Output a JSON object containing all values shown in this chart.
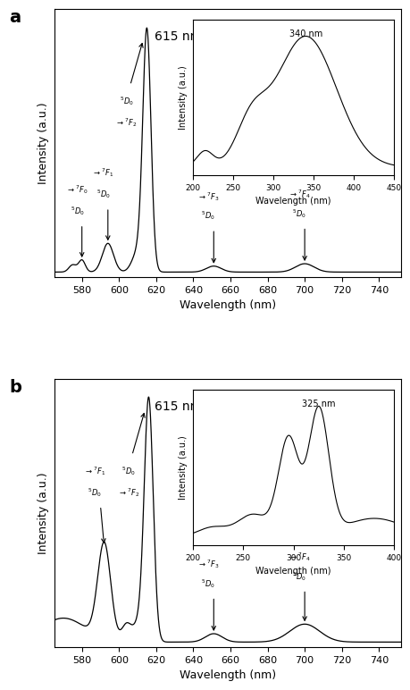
{
  "fig_width": 4.74,
  "fig_height": 7.76,
  "panel_a": {
    "xlim": [
      565,
      752
    ],
    "xticks": [
      580,
      600,
      620,
      640,
      660,
      680,
      700,
      720,
      740
    ],
    "xlabel": "Wavelength (nm)",
    "ylabel": "Intensity (a.u.)",
    "label": "a",
    "peak615_label": "615 nm",
    "inset": {
      "xlim": [
        200,
        450
      ],
      "xticks": [
        200,
        250,
        300,
        350,
        400,
        450
      ],
      "xlabel": "Wavelength (nm)",
      "ylabel": "Intensity (a.u.)",
      "peak_label": "340 nm"
    }
  },
  "panel_b": {
    "xlim": [
      565,
      752
    ],
    "xticks": [
      580,
      600,
      620,
      640,
      660,
      680,
      700,
      720,
      740
    ],
    "xlabel": "Wavelength (nm)",
    "ylabel": "Intensity (a.u.)",
    "label": "b",
    "peak615_label": "615 nm",
    "inset": {
      "xlim": [
        200,
        400
      ],
      "xticks": [
        200,
        250,
        300,
        350,
        400
      ],
      "xlabel": "Wavelength (nm)",
      "ylabel": "Intensity (a.u.)",
      "peak_label": "325 nm"
    }
  }
}
